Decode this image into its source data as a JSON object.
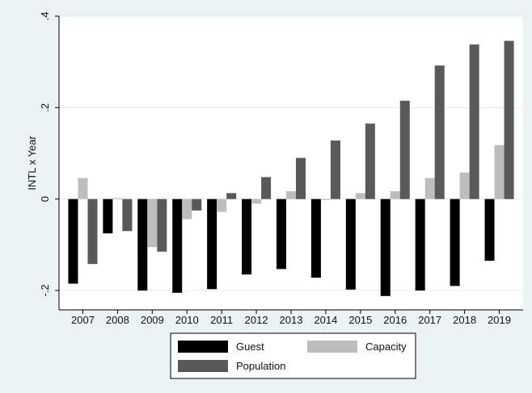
{
  "chart_data": {
    "type": "bar",
    "title": "",
    "xlabel": "",
    "ylabel": "INTL x Year",
    "ylim": [
      -0.2,
      0.4
    ],
    "yticks": [
      -0.2,
      0,
      0.2,
      0.4
    ],
    "ytick_labels": [
      "-.2",
      "0",
      ".2",
      ".4"
    ],
    "categories": [
      "2007",
      "2008",
      "2009",
      "2010",
      "2011",
      "2012",
      "2013",
      "2014",
      "2015",
      "2016",
      "2017",
      "2018",
      "2019"
    ],
    "series": [
      {
        "name": "Guest",
        "color": "#000000",
        "values": [
          -0.185,
          -0.075,
          -0.2,
          -0.205,
          -0.197,
          -0.165,
          -0.153,
          -0.172,
          -0.198,
          -0.212,
          -0.2,
          -0.19,
          -0.135
        ]
      },
      {
        "name": "Capacity",
        "color": "#bdbdbd",
        "values": [
          0.046,
          0.002,
          -0.105,
          -0.044,
          -0.028,
          -0.01,
          0.017,
          -0.002,
          0.013,
          0.017,
          0.046,
          0.058,
          0.118
        ]
      },
      {
        "name": "Population",
        "color": "#595959",
        "values": [
          -0.142,
          -0.07,
          -0.115,
          -0.025,
          0.013,
          0.048,
          0.09,
          0.128,
          0.165,
          0.215,
          0.292,
          0.338,
          0.346
        ]
      }
    ],
    "legend_position": "bottom",
    "grid": "horizontal"
  }
}
